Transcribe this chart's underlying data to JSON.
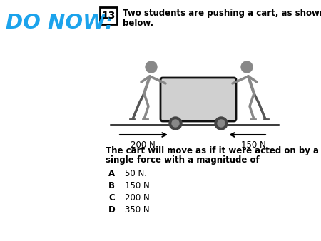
{
  "bg_color": "#ffffff",
  "do_now_text": "DO NOW:",
  "do_now_color": "#1ca3ec",
  "question_number": "13",
  "question_text_line1": "Two students are pushing a cart, as shown",
  "question_text_line2": "below.",
  "body_text_line1": "The cart will move as if it were acted on by a",
  "body_text_line2": "single force with a magnitude of",
  "choices": [
    {
      "letter": "A",
      "text": "50 N."
    },
    {
      "letter": "B",
      "text": "150 N."
    },
    {
      "letter": "C",
      "text": "200 N."
    },
    {
      "letter": "D",
      "text": "350 N."
    }
  ],
  "force_left": "200 N",
  "force_right": "150 N",
  "figsize": [
    4.5,
    3.38
  ],
  "dpi": 100,
  "person_color": "#888888",
  "person_dark": "#555555",
  "cart_color": "#d0d0d0",
  "cart_edge": "#111111"
}
